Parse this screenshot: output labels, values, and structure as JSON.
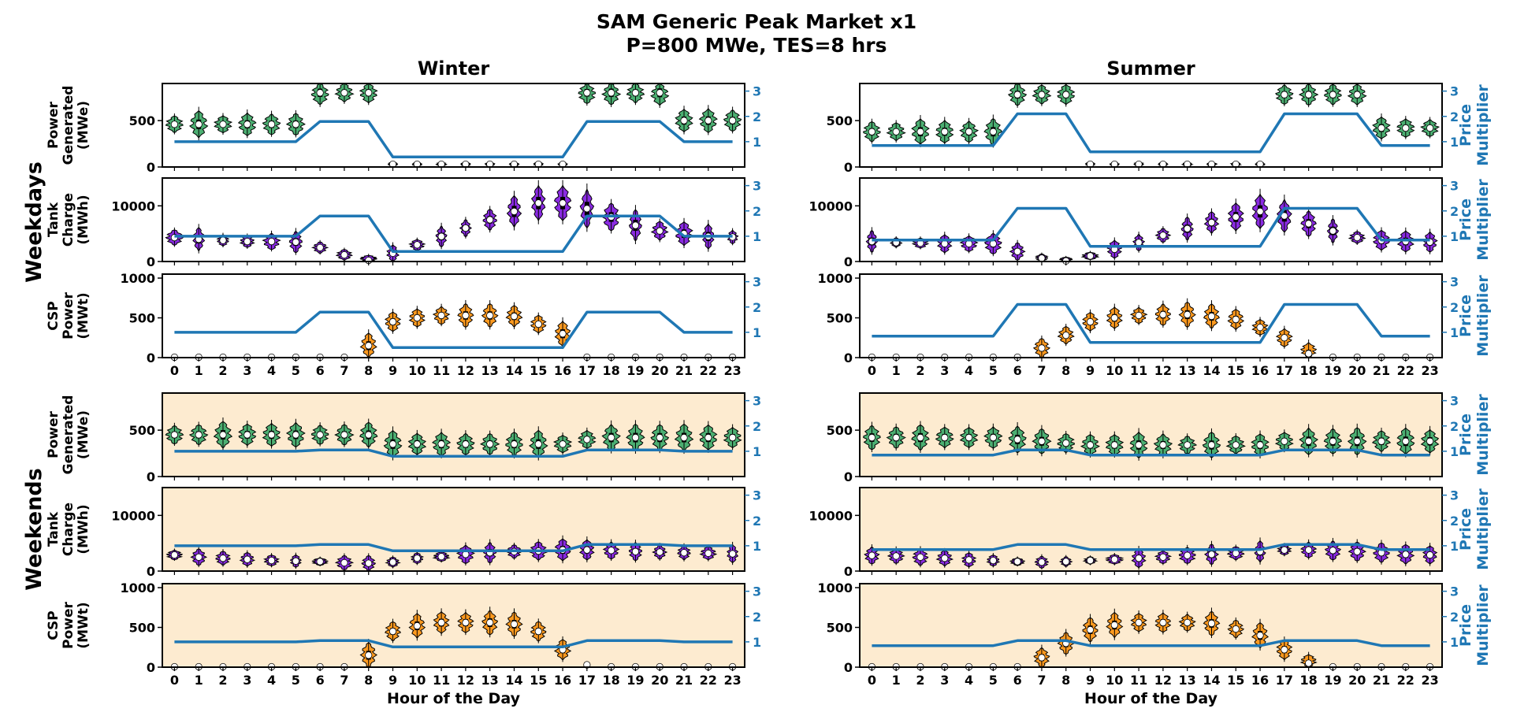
{
  "figure": {
    "title_line1": "SAM Generic Peak Market x1",
    "title_line2": "P=800 MWe, TES=8 hrs",
    "col_titles": [
      "Winter",
      "Summer"
    ],
    "row_group_titles": [
      "Weekdays",
      "Weekends"
    ],
    "metric_labels": [
      [
        "Power",
        "Generated",
        "(MWe)"
      ],
      [
        "Tank",
        "Charge",
        "(MWh)"
      ],
      [
        "CSP",
        "Power",
        "(MWt)"
      ]
    ],
    "right_axis_label": [
      "Price",
      "Multiplier"
    ],
    "xlabel": "Hour of the Day"
  },
  "colors": {
    "power": "#4caf72",
    "tank": "#8a2be2",
    "csp": "#ff9a1f",
    "price_line": "#1f77b4",
    "weekend_bg": "#fdebd0"
  },
  "chart_data": {
    "type": "violin",
    "x_categories": [
      0,
      1,
      2,
      3,
      4,
      5,
      6,
      7,
      8,
      9,
      10,
      11,
      12,
      13,
      14,
      15,
      16,
      17,
      18,
      19,
      20,
      21,
      22,
      23
    ],
    "y_ranges": {
      "power": [
        0,
        900
      ],
      "tank": [
        0,
        15000
      ],
      "csp": [
        0,
        1050
      ],
      "price": [
        0,
        3.3
      ]
    },
    "y_ticks": {
      "power": [
        0,
        500
      ],
      "tank": [
        0,
        10000
      ],
      "csp": [
        0,
        500,
        1000
      ],
      "price": [
        1,
        2,
        3
      ]
    },
    "price_multiplier": {
      "winter_weekday": [
        1,
        1,
        1,
        1,
        1,
        1,
        1.8,
        1.8,
        1.8,
        0.4,
        0.4,
        0.4,
        0.4,
        0.4,
        0.4,
        0.4,
        0.4,
        1.8,
        1.8,
        1.8,
        1.8,
        1,
        1,
        1
      ],
      "summer_weekday": [
        0.85,
        0.85,
        0.85,
        0.85,
        0.85,
        0.85,
        2.1,
        2.1,
        2.1,
        0.6,
        0.6,
        0.6,
        0.6,
        0.6,
        0.6,
        0.6,
        0.6,
        2.1,
        2.1,
        2.1,
        2.1,
        0.85,
        0.85,
        0.85
      ],
      "winter_weekend": [
        1,
        1,
        1,
        1,
        1,
        1,
        1.05,
        1.05,
        1.05,
        0.8,
        0.8,
        0.8,
        0.8,
        0.8,
        0.8,
        0.8,
        0.8,
        1.05,
        1.05,
        1.05,
        1.05,
        1,
        1,
        1
      ],
      "summer_weekend": [
        0.85,
        0.85,
        0.85,
        0.85,
        0.85,
        0.85,
        1.05,
        1.05,
        1.05,
        0.85,
        0.85,
        0.85,
        0.85,
        0.85,
        0.85,
        0.85,
        0.85,
        1.05,
        1.05,
        1.05,
        1.05,
        0.85,
        0.85,
        0.85
      ]
    },
    "median": {
      "winter_weekday": {
        "power": [
          460,
          460,
          460,
          460,
          460,
          460,
          800,
          800,
          800,
          30,
          30,
          30,
          30,
          30,
          30,
          30,
          30,
          800,
          800,
          800,
          800,
          500,
          500,
          500
        ],
        "tank": [
          4300,
          4000,
          3800,
          3600,
          3600,
          3500,
          2500,
          1200,
          200,
          1500,
          3000,
          4500,
          6000,
          7500,
          9000,
          10500,
          10500,
          9500,
          8000,
          6500,
          5500,
          5000,
          4500,
          4400
        ],
        "csp": [
          0,
          0,
          0,
          0,
          0,
          0,
          0,
          0,
          150,
          450,
          500,
          530,
          530,
          530,
          520,
          420,
          300,
          0,
          0,
          0,
          0,
          0,
          0,
          0
        ]
      },
      "summer_weekday": {
        "power": [
          380,
          380,
          380,
          380,
          380,
          380,
          780,
          780,
          780,
          30,
          30,
          30,
          30,
          30,
          30,
          30,
          30,
          780,
          780,
          780,
          780,
          420,
          420,
          420
        ],
        "tank": [
          3600,
          3400,
          3300,
          3200,
          3200,
          3200,
          1800,
          600,
          100,
          1000,
          2200,
          3400,
          4700,
          5900,
          7000,
          8000,
          9000,
          8200,
          6800,
          5500,
          4300,
          3800,
          3600,
          3500
        ],
        "csp": [
          0,
          0,
          0,
          0,
          0,
          0,
          0,
          120,
          280,
          450,
          500,
          530,
          540,
          540,
          520,
          480,
          380,
          250,
          50,
          0,
          0,
          0,
          0,
          0
        ]
      },
      "winter_weekend": {
        "power": [
          450,
          450,
          450,
          450,
          450,
          450,
          450,
          450,
          450,
          350,
          350,
          350,
          350,
          350,
          350,
          350,
          350,
          400,
          420,
          420,
          420,
          420,
          420,
          420
        ],
        "tank": [
          2900,
          2500,
          2300,
          2100,
          1900,
          1800,
          1700,
          1500,
          1400,
          1600,
          2300,
          2600,
          3000,
          3300,
          3500,
          3600,
          3800,
          3800,
          3700,
          3500,
          3400,
          3300,
          3200,
          3100
        ],
        "csp": [
          0,
          0,
          0,
          0,
          0,
          0,
          0,
          0,
          150,
          450,
          520,
          560,
          560,
          560,
          540,
          450,
          220,
          30,
          0,
          0,
          0,
          0,
          0,
          0
        ]
      },
      "summer_weekend": {
        "power": [
          420,
          420,
          420,
          420,
          420,
          420,
          400,
          380,
          360,
          340,
          340,
          340,
          340,
          340,
          340,
          340,
          340,
          380,
          380,
          380,
          380,
          380,
          380,
          380
        ],
        "tank": [
          2800,
          2700,
          2500,
          2300,
          2000,
          1900,
          1700,
          1600,
          1700,
          1900,
          2100,
          2300,
          2500,
          2800,
          3000,
          3200,
          3500,
          3800,
          3800,
          3700,
          3500,
          3300,
          3000,
          2900
        ],
        "csp": [
          0,
          0,
          0,
          0,
          0,
          0,
          0,
          120,
          300,
          470,
          530,
          560,
          560,
          560,
          550,
          480,
          400,
          220,
          50,
          0,
          0,
          0,
          0,
          0
        ]
      }
    }
  }
}
